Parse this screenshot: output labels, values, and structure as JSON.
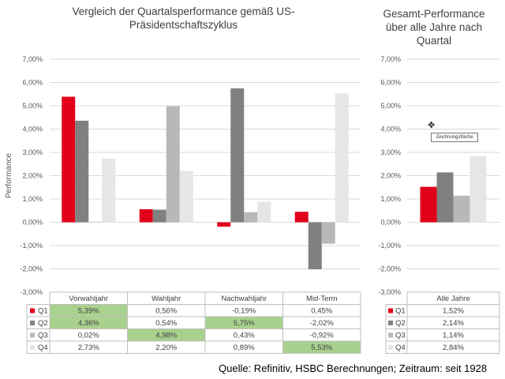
{
  "left_title": [
    "Vergleich der Quartalsperformance gemäß US-",
    "Präsidentschaftszyklus"
  ],
  "right_title": [
    "Gesamt-Performance",
    "über alle Jahre nach",
    "Quartal"
  ],
  "source": "Quelle: Refinitiv, HSBC Berechnungen; Zeitraum: seit 1928",
  "tooltip": "Zeichnungsfläche",
  "colors": {
    "Q1": "#e2001a",
    "Q2": "#808080",
    "Q3": "#b8b8b8",
    "Q4": "#e6e6e6",
    "highlight": "#a9d18e",
    "grid": "#d9d9d9",
    "axis_text": "#595959"
  },
  "chart_data": [
    {
      "type": "bar",
      "title": "Vergleich der Quartalsperformance gemäß US-Präsidentschaftszyklus",
      "ylabel": "Performance",
      "ylim": [
        -3,
        7
      ],
      "yticks": [
        "7,00%",
        "6,00%",
        "5,00%",
        "4,00%",
        "3,00%",
        "2,00%",
        "1,00%",
        "0,00%",
        "-1,00%",
        "-2,00%",
        "-3,00%"
      ],
      "categories": [
        "Vorwahljahr",
        "Wahljahr",
        "Nachwahljahr",
        "Mid-Term"
      ],
      "series": [
        {
          "name": "Q1",
          "values": [
            5.39,
            0.56,
            -0.19,
            0.45
          ],
          "labels": [
            "5,39%",
            "0,56%",
            "-0,19%",
            "0,45%"
          ],
          "highlight": [
            true,
            false,
            false,
            false
          ]
        },
        {
          "name": "Q2",
          "values": [
            4.36,
            0.54,
            5.75,
            -2.02
          ],
          "labels": [
            "4,36%",
            "0,54%",
            "5,75%",
            "-2,02%"
          ],
          "highlight": [
            true,
            false,
            true,
            false
          ]
        },
        {
          "name": "Q3",
          "values": [
            0.02,
            4.98,
            0.43,
            -0.92
          ],
          "labels": [
            "0,02%",
            "4,98%",
            "0,43%",
            "-0,92%"
          ],
          "highlight": [
            false,
            true,
            false,
            false
          ]
        },
        {
          "name": "Q4",
          "values": [
            2.73,
            2.2,
            0.89,
            5.53
          ],
          "labels": [
            "2,73%",
            "2,20%",
            "0,89%",
            "5,53%"
          ],
          "highlight": [
            false,
            false,
            false,
            true
          ]
        }
      ]
    },
    {
      "type": "bar",
      "title": "Gesamt-Performance über alle Jahre nach Quartal",
      "ylim": [
        -3,
        7
      ],
      "yticks": [
        "7,00%",
        "6,00%",
        "5,00%",
        "4,00%",
        "3,00%",
        "2,00%",
        "1,00%",
        "0,00%",
        "-1,00%",
        "-2,00%",
        "-3,00%"
      ],
      "categories": [
        "Alle Jahre"
      ],
      "series": [
        {
          "name": "Q1",
          "values": [
            1.52
          ],
          "labels": [
            "1,52%"
          ]
        },
        {
          "name": "Q2",
          "values": [
            2.14
          ],
          "labels": [
            "2,14%"
          ]
        },
        {
          "name": "Q3",
          "values": [
            1.14
          ],
          "labels": [
            "1,14%"
          ]
        },
        {
          "name": "Q4",
          "values": [
            2.84
          ],
          "labels": [
            "2,84%"
          ]
        }
      ]
    }
  ]
}
